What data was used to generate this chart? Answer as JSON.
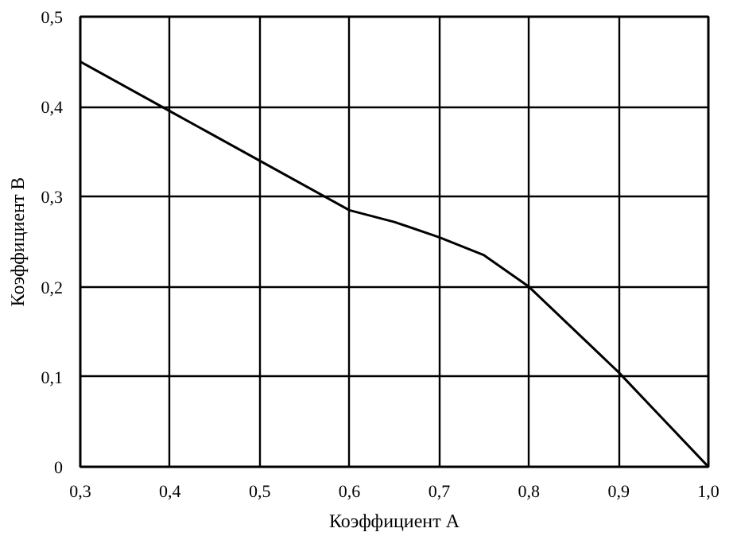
{
  "chart_data": {
    "type": "line",
    "xlabel": "Коэффициент А",
    "ylabel": "Коэффициент В",
    "x": [
      0.3,
      0.4,
      0.5,
      0.6,
      0.65,
      0.7,
      0.75,
      0.8,
      0.9,
      1.0
    ],
    "series": [
      {
        "color": "#000000",
        "values": [
          0.45,
          0.395,
          0.34,
          0.285,
          0.272,
          0.255,
          0.235,
          0.2,
          0.105,
          0.0
        ]
      }
    ],
    "xlim": [
      0.3,
      1.0
    ],
    "ylim": [
      0,
      0.5
    ],
    "xticks": [
      {
        "value": 0.3,
        "label": "0,3"
      },
      {
        "value": 0.4,
        "label": "0,4"
      },
      {
        "value": 0.5,
        "label": "0,5"
      },
      {
        "value": 0.6,
        "label": "0,6"
      },
      {
        "value": 0.7,
        "label": "0,7"
      },
      {
        "value": 0.8,
        "label": "0,8"
      },
      {
        "value": 0.9,
        "label": "0,9"
      },
      {
        "value": 1.0,
        "label": "1,0"
      }
    ],
    "yticks": [
      0,
      {
        "value": 0.1,
        "label": "0,1"
      },
      {
        "value": 0.2,
        "label": "0,2"
      },
      {
        "value": 0.3,
        "label": "0,3"
      },
      {
        "value": 0.4,
        "label": "0,4"
      },
      {
        "value": 0.5,
        "label": "0,5"
      }
    ],
    "grid": true,
    "marker": "none",
    "line_style": "solid"
  }
}
